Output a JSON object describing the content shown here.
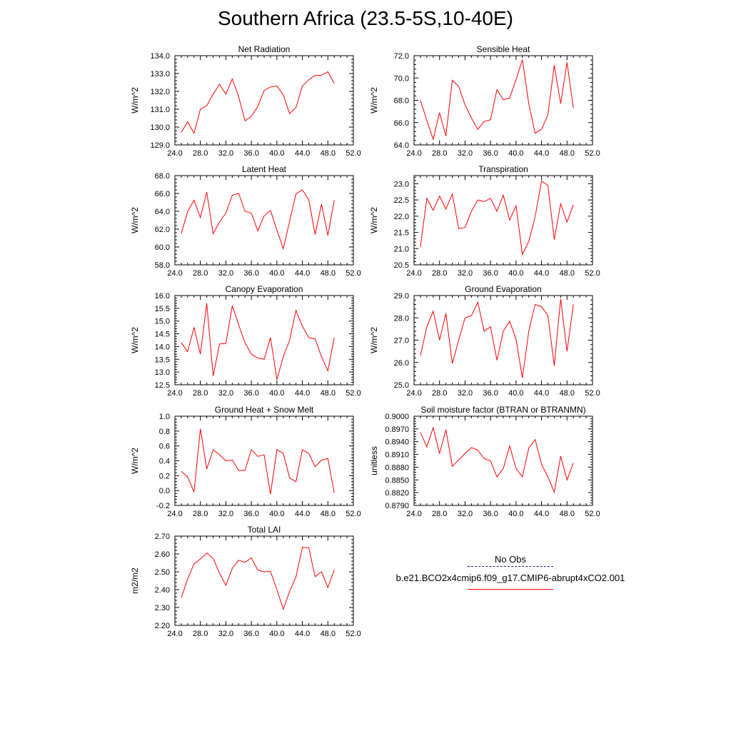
{
  "title": "Southern Africa (23.5-5S,10-40E)",
  "legend": {
    "entries": [
      {
        "label": "No Obs",
        "color": "#1c1c7c",
        "style": "dashed"
      },
      {
        "label": "b.e21.BCO2x4cmip6.f09_g17.CMIP6-abrupt4xCO2.001",
        "color": "#ff0000",
        "style": "solid"
      }
    ]
  },
  "chart_data": [
    {
      "type": "line",
      "title": "Net Radiation",
      "ylabel": "W/m^2",
      "xlabel": "",
      "xlim": [
        24,
        52
      ],
      "ylim": [
        129,
        134
      ],
      "xticks": [
        "24.0",
        "28.0",
        "32.0",
        "36.0",
        "40.0",
        "44.0",
        "48.0",
        "52.0"
      ],
      "yticks": [
        "129.0",
        "130.0",
        "131.0",
        "132.0",
        "133.0",
        "134.0"
      ],
      "x": [
        25,
        26,
        27,
        28,
        29,
        30,
        31,
        32,
        33,
        34,
        35,
        36,
        37,
        38,
        39,
        40,
        41,
        42,
        43,
        44,
        45,
        46,
        47,
        48,
        49
      ],
      "series": [
        {
          "values": [
            129.7,
            130.3,
            129.65,
            131.0,
            131.2,
            131.85,
            132.4,
            131.85,
            132.7,
            131.7,
            130.35,
            130.6,
            131.15,
            132.05,
            132.25,
            132.3,
            131.8,
            130.75,
            131.1,
            132.3,
            132.65,
            132.9,
            132.9,
            133.1,
            132.45
          ],
          "color": "#ff0000"
        }
      ]
    },
    {
      "type": "line",
      "title": "Sensible Heat",
      "ylabel": "W/m^2",
      "xlabel": "",
      "xlim": [
        24,
        52
      ],
      "ylim": [
        64,
        72
      ],
      "xticks": [
        "24.0",
        "28.0",
        "32.0",
        "36.0",
        "40.0",
        "44.0",
        "48.0",
        "52.0"
      ],
      "yticks": [
        "64.0",
        "66.0",
        "68.0",
        "70.0",
        "72.0"
      ],
      "x": [
        25,
        26,
        27,
        28,
        29,
        30,
        31,
        32,
        33,
        34,
        35,
        36,
        37,
        38,
        39,
        40,
        41,
        42,
        43,
        44,
        45,
        46,
        47,
        48,
        49
      ],
      "series": [
        {
          "values": [
            68.0,
            66.2,
            64.5,
            66.9,
            64.8,
            69.8,
            69.25,
            67.6,
            66.4,
            65.4,
            66.1,
            66.25,
            68.95,
            68.05,
            68.2,
            69.85,
            71.65,
            67.7,
            65.05,
            65.4,
            66.7,
            71.15,
            67.7,
            71.4,
            67.3
          ],
          "color": "#ff0000"
        }
      ]
    },
    {
      "type": "line",
      "title": "Latent Heat",
      "ylabel": "W/m^2",
      "xlabel": "",
      "xlim": [
        24,
        52
      ],
      "ylim": [
        58,
        68
      ],
      "xticks": [
        "24.0",
        "28.0",
        "32.0",
        "36.0",
        "40.0",
        "44.0",
        "48.0",
        "52.0"
      ],
      "yticks": [
        "58.0",
        "60.0",
        "62.0",
        "64.0",
        "66.0",
        "68.0"
      ],
      "x": [
        25,
        26,
        27,
        28,
        29,
        30,
        31,
        32,
        33,
        34,
        35,
        36,
        37,
        38,
        39,
        40,
        41,
        42,
        43,
        44,
        45,
        46,
        47,
        48,
        49
      ],
      "series": [
        {
          "values": [
            61.5,
            64.0,
            65.25,
            63.3,
            66.15,
            61.5,
            62.8,
            63.8,
            65.8,
            66.0,
            64.0,
            63.8,
            61.8,
            63.5,
            64.1,
            61.9,
            59.8,
            62.9,
            65.95,
            66.4,
            65.3,
            61.4,
            64.8,
            61.3,
            65.25
          ],
          "color": "#ff0000"
        }
      ]
    },
    {
      "type": "line",
      "title": "Transpiration",
      "ylabel": "W/m^2",
      "xlabel": "",
      "xlim": [
        24,
        52
      ],
      "ylim": [
        20.5,
        23.25
      ],
      "xticks": [
        "24.0",
        "28.0",
        "32.0",
        "36.0",
        "40.0",
        "44.0",
        "48.0",
        "52.0"
      ],
      "yticks": [
        "20.5",
        "21.0",
        "21.5",
        "22.0",
        "22.5",
        "23.0"
      ],
      "x": [
        25,
        26,
        27,
        28,
        29,
        30,
        31,
        32,
        33,
        34,
        35,
        36,
        37,
        38,
        39,
        40,
        41,
        42,
        43,
        44,
        45,
        46,
        47,
        48,
        49
      ],
      "series": [
        {
          "values": [
            21.05,
            22.55,
            22.18,
            22.62,
            22.22,
            22.68,
            21.62,
            21.65,
            22.15,
            22.5,
            22.45,
            22.55,
            22.15,
            22.65,
            21.88,
            22.32,
            20.82,
            21.22,
            21.98,
            23.08,
            22.95,
            21.28,
            22.38,
            21.82,
            22.35
          ],
          "color": "#ff0000"
        }
      ]
    },
    {
      "type": "line",
      "title": "Canopy Evaporation",
      "ylabel": "W/m^2",
      "xlabel": "",
      "xlim": [
        24,
        52
      ],
      "ylim": [
        12.5,
        16.0
      ],
      "xticks": [
        "24.0",
        "28.0",
        "32.0",
        "36.0",
        "40.0",
        "44.0",
        "48.0",
        "52.0"
      ],
      "yticks": [
        "12.5",
        "13.0",
        "13.5",
        "14.0",
        "14.5",
        "15.0",
        "15.5",
        "16.0"
      ],
      "x": [
        25,
        26,
        27,
        28,
        29,
        30,
        31,
        32,
        33,
        34,
        35,
        36,
        37,
        38,
        39,
        40,
        41,
        42,
        43,
        44,
        45,
        46,
        47,
        48,
        49
      ],
      "series": [
        {
          "values": [
            14.15,
            13.8,
            14.75,
            13.7,
            15.7,
            12.85,
            14.1,
            14.12,
            15.6,
            14.85,
            14.15,
            13.7,
            13.55,
            13.5,
            14.35,
            12.7,
            13.6,
            14.25,
            15.42,
            14.8,
            14.35,
            14.3,
            13.6,
            13.05,
            14.35
          ],
          "color": "#ff0000"
        }
      ]
    },
    {
      "type": "line",
      "title": "Ground Evaporation",
      "ylabel": "W/m^2",
      "xlabel": "",
      "xlim": [
        24,
        52
      ],
      "ylim": [
        25,
        29
      ],
      "xticks": [
        "24.0",
        "28.0",
        "32.0",
        "36.0",
        "40.0",
        "44.0",
        "48.0",
        "52.0"
      ],
      "yticks": [
        "25.0",
        "26.0",
        "27.0",
        "28.0",
        "29.0"
      ],
      "x": [
        25,
        26,
        27,
        28,
        29,
        30,
        31,
        32,
        33,
        34,
        35,
        36,
        37,
        38,
        39,
        40,
        41,
        42,
        43,
        44,
        45,
        46,
        47,
        48,
        49
      ],
      "series": [
        {
          "values": [
            26.3,
            27.6,
            28.3,
            27.0,
            28.2,
            25.95,
            27.0,
            28.0,
            28.1,
            28.7,
            27.4,
            27.6,
            26.1,
            27.4,
            27.85,
            27.05,
            25.3,
            27.4,
            28.6,
            28.5,
            28.1,
            25.85,
            28.85,
            26.5,
            28.6
          ],
          "color": "#ff0000"
        }
      ]
    },
    {
      "type": "line",
      "title": "Ground Heat + Snow Melt",
      "ylabel": "W/m^2",
      "xlabel": "",
      "xlim": [
        24,
        52
      ],
      "ylim": [
        -0.2,
        1.0
      ],
      "xticks": [
        "24.0",
        "28.0",
        "32.0",
        "36.0",
        "40.0",
        "44.0",
        "48.0",
        "52.0"
      ],
      "yticks": [
        "-0.2",
        "0.0",
        "0.2",
        "0.4",
        "0.6",
        "0.8",
        "1.0"
      ],
      "x": [
        25,
        26,
        27,
        28,
        29,
        30,
        31,
        32,
        33,
        34,
        35,
        36,
        37,
        38,
        39,
        40,
        41,
        42,
        43,
        44,
        45,
        46,
        47,
        48,
        49
      ],
      "series": [
        {
          "values": [
            0.26,
            0.18,
            -0.02,
            0.83,
            0.29,
            0.55,
            0.48,
            0.4,
            0.41,
            0.27,
            0.27,
            0.55,
            0.46,
            0.48,
            -0.05,
            0.55,
            0.5,
            0.17,
            0.12,
            0.55,
            0.5,
            0.32,
            0.41,
            0.43,
            -0.03
          ],
          "color": "#ff0000"
        }
      ]
    },
    {
      "type": "line",
      "title": "Soil moisture factor (BTRAN or BTRANMN)",
      "ylabel": "unitless",
      "xlabel": "",
      "xlim": [
        24,
        52
      ],
      "ylim": [
        0.879,
        0.9
      ],
      "xticks": [
        "24.0",
        "28.0",
        "32.0",
        "36.0",
        "40.0",
        "44.0",
        "48.0",
        "52.0"
      ],
      "yticks": [
        "0.8790",
        "0.8820",
        "0.8850",
        "0.8880",
        "0.8910",
        "0.8940",
        "0.8970",
        "0.9000"
      ],
      "x": [
        25,
        26,
        27,
        28,
        29,
        30,
        31,
        32,
        33,
        34,
        35,
        36,
        37,
        38,
        39,
        40,
        41,
        42,
        43,
        44,
        45,
        46,
        47,
        48,
        49
      ],
      "series": [
        {
          "values": [
            0.8962,
            0.8928,
            0.8973,
            0.8912,
            0.8968,
            0.8882,
            0.8897,
            0.8912,
            0.8926,
            0.892,
            0.89,
            0.8895,
            0.8857,
            0.8877,
            0.893,
            0.8877,
            0.8857,
            0.8925,
            0.8945,
            0.8887,
            0.8857,
            0.8821,
            0.8906,
            0.885,
            0.889
          ],
          "color": "#ff0000"
        }
      ]
    },
    {
      "type": "line",
      "title": "Total LAI",
      "ylabel": "m2/m2",
      "xlabel": "",
      "xlim": [
        24,
        52
      ],
      "ylim": [
        2.2,
        2.7
      ],
      "xticks": [
        "24.0",
        "28.0",
        "32.0",
        "36.0",
        "40.0",
        "44.0",
        "48.0",
        "52.0"
      ],
      "yticks": [
        "2.20",
        "2.30",
        "2.40",
        "2.50",
        "2.60",
        "2.70"
      ],
      "x": [
        25,
        26,
        27,
        28,
        29,
        30,
        31,
        32,
        33,
        34,
        35,
        36,
        37,
        38,
        39,
        40,
        41,
        42,
        43,
        44,
        45,
        46,
        47,
        48,
        49
      ],
      "series": [
        {
          "values": [
            2.355,
            2.46,
            2.545,
            2.572,
            2.605,
            2.575,
            2.492,
            2.425,
            2.52,
            2.565,
            2.553,
            2.578,
            2.51,
            2.5,
            2.502,
            2.4,
            2.29,
            2.39,
            2.472,
            2.637,
            2.635,
            2.473,
            2.5,
            2.412,
            2.512
          ],
          "color": "#ff0000"
        }
      ]
    }
  ]
}
